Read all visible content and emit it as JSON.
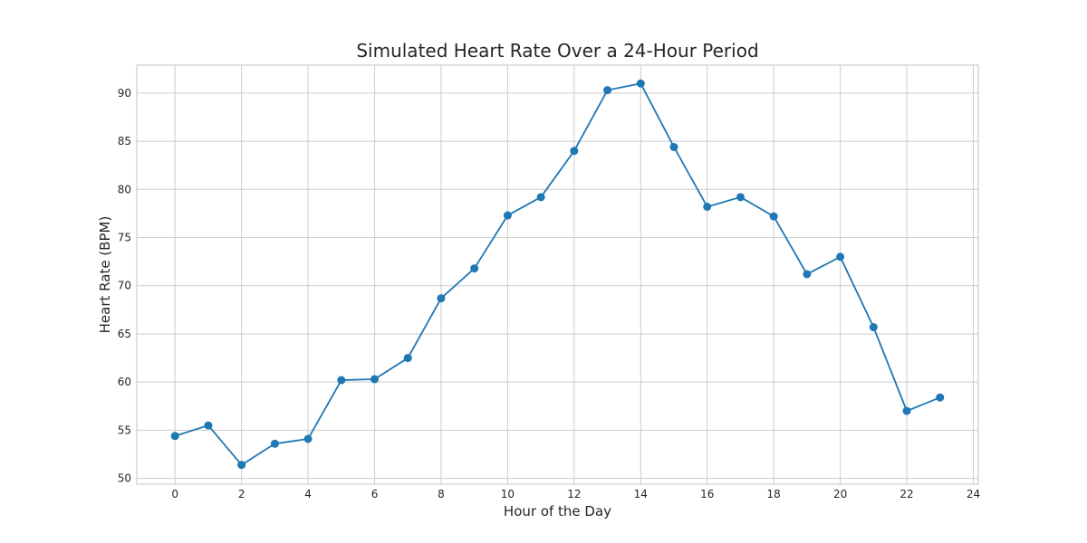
{
  "chart_data": {
    "type": "line",
    "title": "Simulated Heart Rate Over a 24-Hour Period",
    "xlabel": "Hour of the Day",
    "ylabel": "Heart Rate (BPM)",
    "xlim": [
      -1.15,
      24.15
    ],
    "ylim": [
      49.4,
      92.9
    ],
    "xticks": [
      0,
      2,
      4,
      6,
      8,
      10,
      12,
      14,
      16,
      18,
      20,
      22,
      24
    ],
    "yticks": [
      50,
      55,
      60,
      65,
      70,
      75,
      80,
      85,
      90
    ],
    "grid": true,
    "series": [
      {
        "color": "#1f77b4",
        "marker": "circle",
        "x": [
          0,
          1,
          2,
          3,
          4,
          5,
          6,
          7,
          8,
          9,
          10,
          11,
          12,
          13,
          14,
          15,
          16,
          17,
          18,
          19,
          20,
          21,
          22,
          23
        ],
        "y": [
          54.4,
          55.5,
          51.4,
          53.6,
          54.1,
          60.2,
          60.3,
          62.5,
          68.7,
          71.8,
          77.3,
          79.2,
          84.0,
          90.3,
          91.0,
          84.4,
          78.2,
          79.2,
          77.2,
          71.2,
          73.0,
          65.7,
          57.0,
          58.4
        ]
      }
    ]
  }
}
